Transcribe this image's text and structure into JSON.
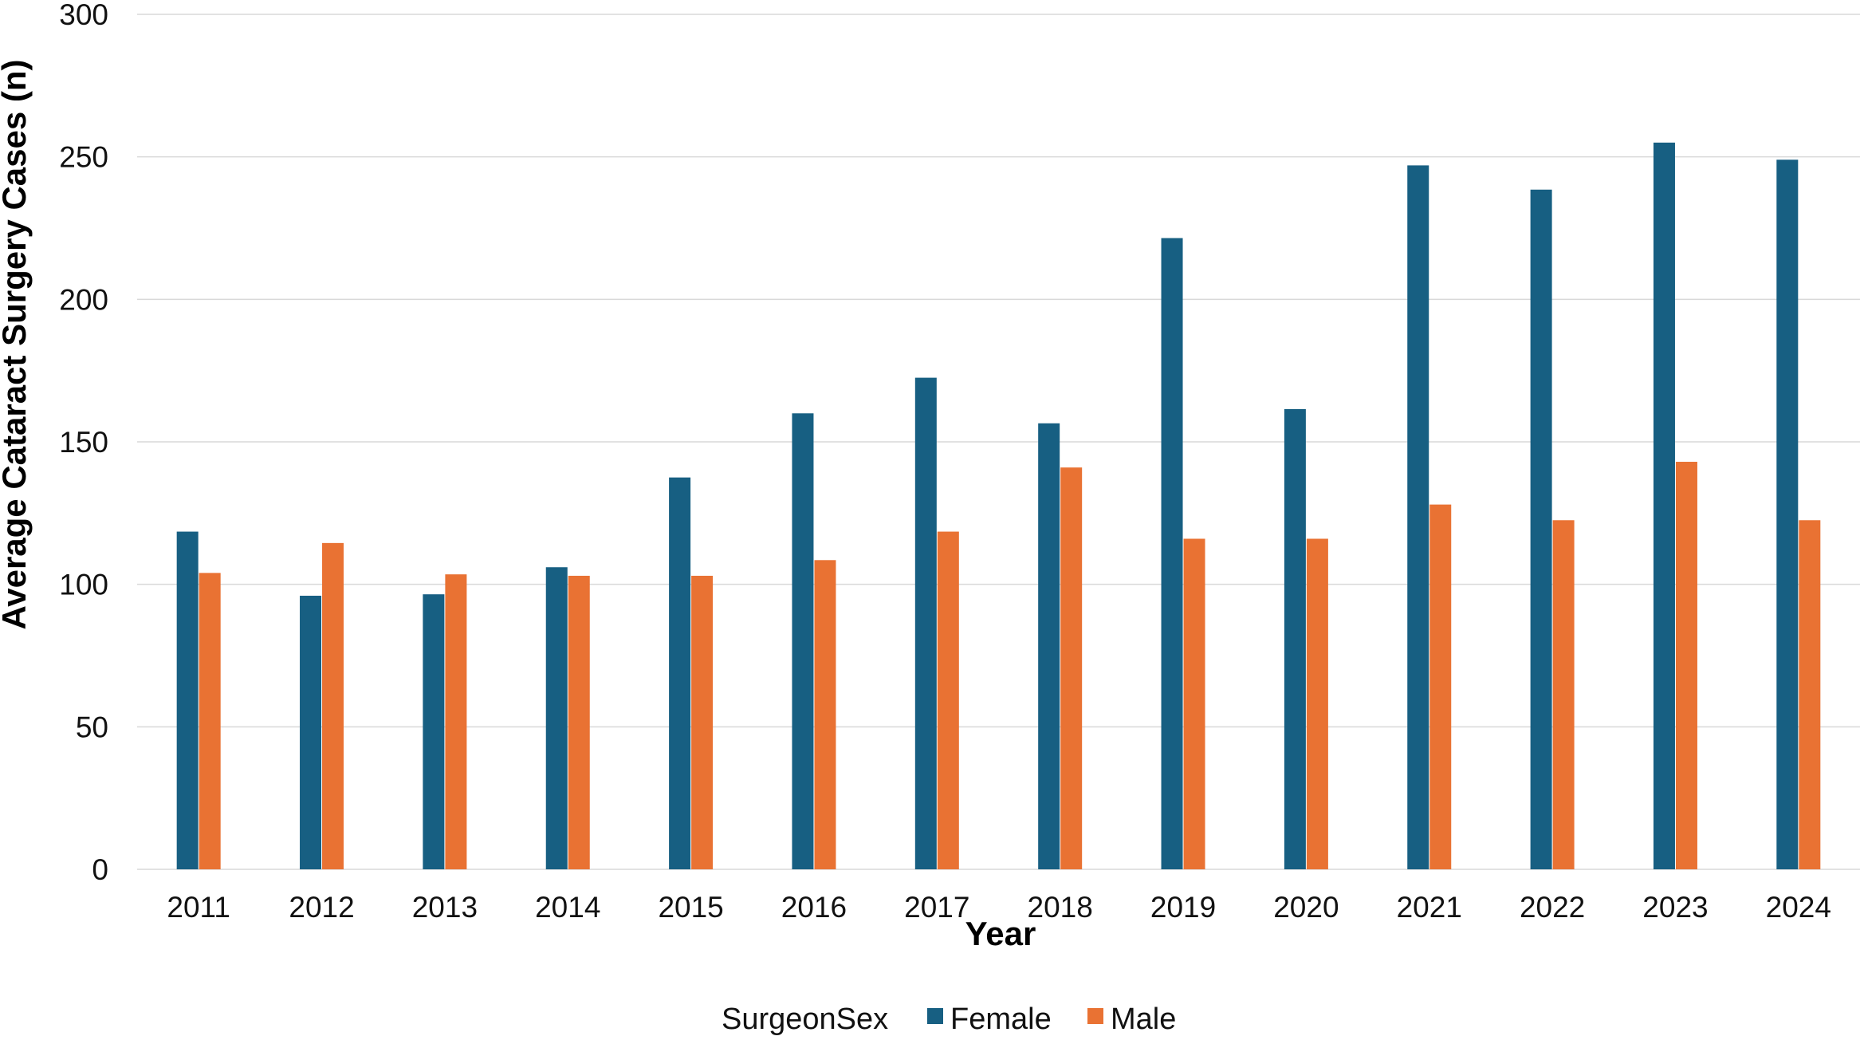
{
  "chart_data": {
    "type": "bar",
    "title": "",
    "xlabel": "Year",
    "ylabel": "Average Cataract Surgery Cases (n)",
    "ylim": [
      0,
      300
    ],
    "yticks": [
      0,
      50,
      100,
      150,
      200,
      250,
      300
    ],
    "grid": true,
    "legend_position": "bottom",
    "legend_title": "SurgeonSex",
    "categories": [
      "2011",
      "2012",
      "2013",
      "2014",
      "2015",
      "2016",
      "2017",
      "2018",
      "2019",
      "2020",
      "2021",
      "2022",
      "2023",
      "2024"
    ],
    "series": [
      {
        "name": "Female",
        "color": "#175f82",
        "values": [
          118.5,
          96,
          96.5,
          106,
          137.5,
          160,
          172.5,
          156.5,
          221.5,
          161.5,
          247,
          238.5,
          255,
          249
        ]
      },
      {
        "name": "Male",
        "color": "#e97233",
        "values": [
          104,
          114.5,
          103.5,
          103,
          103,
          108.5,
          118.5,
          141,
          116,
          116,
          128,
          122.5,
          143,
          122.5
        ]
      }
    ]
  }
}
